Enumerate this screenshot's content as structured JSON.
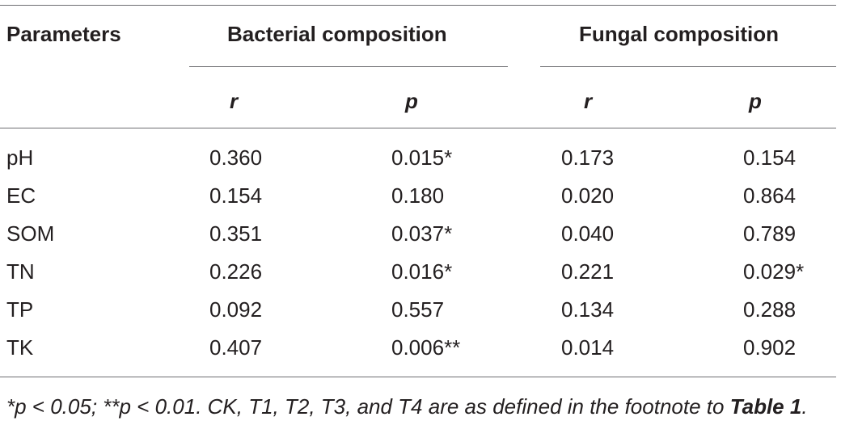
{
  "table": {
    "header": {
      "parameters": "Parameters",
      "bacterial": "Bacterial composition",
      "fungal": "Fungal composition",
      "sub": [
        "r",
        "p",
        "r",
        "p"
      ]
    },
    "rows": [
      {
        "param": "pH",
        "b_r": "0.360",
        "b_p": "0.015*",
        "f_r": "0.173",
        "f_p": "0.154"
      },
      {
        "param": "EC",
        "b_r": "0.154",
        "b_p": "0.180",
        "f_r": "0.020",
        "f_p": "0.864"
      },
      {
        "param": "SOM",
        "b_r": "0.351",
        "b_p": "0.037*",
        "f_r": "0.040",
        "f_p": "0.789"
      },
      {
        "param": "TN",
        "b_r": "0.226",
        "b_p": "0.016*",
        "f_r": "0.221",
        "f_p": "0.029*"
      },
      {
        "param": "TP",
        "b_r": "0.092",
        "b_p": "0.557",
        "f_r": "0.134",
        "f_p": "0.288"
      },
      {
        "param": "TK",
        "b_r": "0.407",
        "b_p": "0.006**",
        "f_r": "0.014",
        "f_p": "0.902"
      }
    ]
  },
  "footnote": {
    "text": "*p < 0.05; **p < 0.01. CK, T1, T2, T3, and T4 are as defined in the footnote to ",
    "ref": "Table 1",
    "end": "."
  }
}
